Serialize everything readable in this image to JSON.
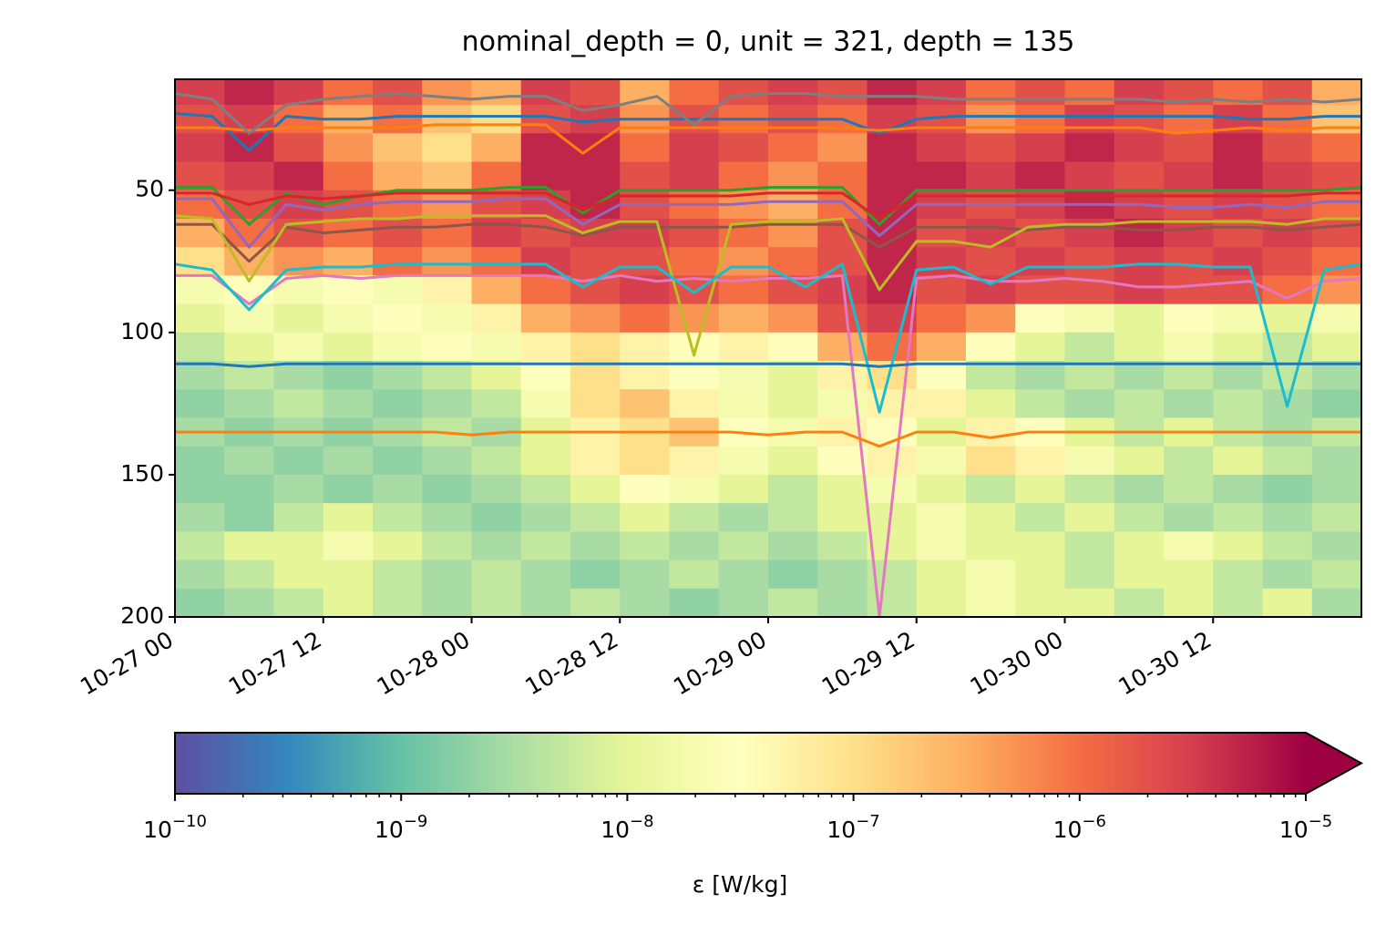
{
  "chart_data": {
    "type": "heatmap",
    "title": "nominal_depth = 0, unit = 321, depth = 135",
    "xlim": [
      "10-27 00",
      "10-31 00"
    ],
    "xticks": [
      "10-27 00",
      "10-27 12",
      "10-28 00",
      "10-28 12",
      "10-29 00",
      "10-29 12",
      "10-30 00",
      "10-30 12"
    ],
    "ylim": [
      200,
      11
    ],
    "yticks": [
      50,
      100,
      150,
      200
    ],
    "heatmap": {
      "x_edges": [
        "10-27 00",
        "10-27 04",
        "10-27 08",
        "10-27 12",
        "10-27 16",
        "10-27 20",
        "10-28 00",
        "10-28 04",
        "10-28 08",
        "10-28 12",
        "10-28 16",
        "10-28 20",
        "10-29 00",
        "10-29 04",
        "10-29 08",
        "10-29 12",
        "10-29 16",
        "10-29 20",
        "10-30 00",
        "10-30 04",
        "10-30 08",
        "10-30 12",
        "10-30 16",
        "10-30 20",
        "10-31 00"
      ],
      "y_edges": [
        10,
        20,
        30,
        40,
        50,
        60,
        70,
        80,
        90,
        100,
        110,
        120,
        130,
        140,
        150,
        160,
        170,
        180,
        190,
        200
      ],
      "values": [
        [
          3e-06,
          5e-06,
          3e-06,
          1e-06,
          2e-06,
          5e-07,
          3e-07,
          3e-06,
          2e-06,
          3e-07,
          1e-06,
          2e-06,
          3e-06,
          2e-06,
          5e-06,
          3e-06,
          1e-06,
          2e-06,
          1e-06,
          3e-06,
          2e-06,
          1e-06,
          2e-06,
          3e-07
        ],
        [
          2e-06,
          3e-06,
          1e-06,
          3e-07,
          1e-06,
          2e-07,
          1e-07,
          2e-06,
          3e-06,
          5e-07,
          2e-06,
          1e-06,
          2e-06,
          1e-06,
          3e-06,
          2e-06,
          5e-07,
          1e-06,
          3e-06,
          2e-06,
          1e-06,
          3e-06,
          1e-06,
          2e-07
        ],
        [
          3e-06,
          5e-06,
          2e-06,
          5e-07,
          2e-07,
          1e-07,
          3e-07,
          5e-06,
          5e-06,
          1e-06,
          3e-06,
          2e-06,
          1e-06,
          5e-07,
          5e-06,
          3e-06,
          2e-06,
          3e-06,
          5e-06,
          3e-06,
          2e-06,
          5e-06,
          2e-06,
          1e-06
        ],
        [
          2e-06,
          3e-06,
          5e-06,
          1e-06,
          3e-07,
          2e-07,
          1e-06,
          5e-06,
          5e-06,
          2e-06,
          3e-06,
          1e-06,
          5e-07,
          1e-06,
          5e-06,
          5e-06,
          3e-06,
          5e-06,
          3e-06,
          2e-06,
          3e-06,
          5e-06,
          3e-06,
          2e-06
        ],
        [
          1e-06,
          2e-06,
          3e-06,
          2e-06,
          1e-06,
          5e-07,
          2e-06,
          3e-06,
          5e-06,
          2e-06,
          1e-06,
          5e-07,
          3e-07,
          1e-06,
          5e-06,
          3e-06,
          2e-06,
          3e-06,
          5e-06,
          3e-06,
          2e-06,
          3e-06,
          2e-06,
          1e-06
        ],
        [
          3e-07,
          1e-06,
          2e-06,
          1e-06,
          2e-06,
          1e-06,
          3e-06,
          2e-06,
          3e-06,
          3e-06,
          2e-06,
          1e-06,
          5e-07,
          2e-06,
          5e-06,
          2e-06,
          3e-06,
          2e-06,
          3e-06,
          5e-06,
          3e-06,
          2e-06,
          3e-06,
          2e-06
        ],
        [
          1e-07,
          3e-07,
          5e-07,
          3e-07,
          1e-06,
          5e-07,
          1e-06,
          3e-06,
          2e-06,
          2e-06,
          1e-06,
          5e-07,
          1e-06,
          2e-06,
          5e-06,
          3e-06,
          2e-06,
          3e-06,
          2e-06,
          3e-06,
          2e-06,
          3e-06,
          2e-06,
          1e-06
        ],
        [
          2e-08,
          3e-08,
          2e-08,
          3e-08,
          2e-08,
          5e-08,
          3e-07,
          1e-06,
          2e-06,
          3e-06,
          2e-06,
          1e-06,
          2e-06,
          3e-06,
          5e-06,
          2e-06,
          3e-06,
          2e-06,
          2e-06,
          3e-06,
          2e-06,
          2e-06,
          1e-06,
          5e-07
        ],
        [
          1e-08,
          2e-08,
          1e-08,
          2e-08,
          3e-08,
          2e-08,
          5e-08,
          3e-07,
          5e-07,
          1e-06,
          5e-07,
          3e-07,
          5e-07,
          2e-06,
          3e-06,
          1e-06,
          5e-07,
          3e-08,
          2e-08,
          1e-08,
          3e-08,
          2e-08,
          1e-08,
          2e-08
        ],
        [
          5e-09,
          1e-08,
          2e-08,
          1e-08,
          2e-08,
          3e-08,
          2e-08,
          5e-08,
          1e-07,
          5e-08,
          3e-08,
          5e-08,
          3e-08,
          3e-07,
          1e-06,
          3e-07,
          3e-08,
          1e-08,
          5e-09,
          1e-08,
          2e-08,
          1e-08,
          5e-09,
          1e-08
        ],
        [
          3e-09,
          5e-09,
          3e-09,
          2e-09,
          3e-09,
          5e-09,
          1e-08,
          3e-08,
          1e-07,
          5e-08,
          3e-08,
          2e-08,
          1e-08,
          5e-08,
          1e-07,
          3e-08,
          5e-09,
          3e-09,
          5e-09,
          3e-09,
          5e-09,
          3e-09,
          5e-09,
          3e-09
        ],
        [
          2e-09,
          3e-09,
          5e-09,
          3e-09,
          2e-09,
          3e-09,
          5e-09,
          2e-08,
          1e-07,
          2e-07,
          5e-08,
          2e-08,
          1e-08,
          2e-08,
          5e-08,
          5e-08,
          1e-08,
          5e-09,
          3e-09,
          5e-09,
          3e-09,
          5e-09,
          3e-09,
          2e-09
        ],
        [
          3e-09,
          2e-09,
          3e-09,
          2e-09,
          3e-09,
          5e-09,
          3e-09,
          1e-08,
          5e-08,
          1e-07,
          2e-07,
          3e-08,
          2e-08,
          5e-08,
          3e-08,
          1e-08,
          5e-08,
          3e-08,
          1e-08,
          5e-09,
          1e-08,
          5e-09,
          3e-09,
          5e-09
        ],
        [
          2e-09,
          3e-09,
          2e-09,
          3e-09,
          2e-09,
          3e-09,
          5e-09,
          1e-08,
          5e-08,
          1e-07,
          5e-08,
          2e-08,
          1e-08,
          3e-08,
          5e-08,
          2e-08,
          1e-07,
          5e-08,
          2e-08,
          1e-08,
          5e-09,
          1e-08,
          5e-09,
          3e-09
        ],
        [
          2e-09,
          2e-09,
          3e-09,
          2e-09,
          3e-09,
          2e-09,
          3e-09,
          5e-09,
          1e-08,
          3e-08,
          2e-08,
          1e-08,
          5e-09,
          1e-08,
          2e-08,
          1e-08,
          5e-09,
          1e-08,
          5e-09,
          3e-09,
          5e-09,
          3e-09,
          2e-09,
          3e-09
        ],
        [
          3e-09,
          2e-09,
          5e-09,
          1e-08,
          5e-09,
          3e-09,
          2e-09,
          3e-09,
          5e-09,
          1e-08,
          5e-09,
          3e-09,
          5e-09,
          1e-08,
          1e-08,
          2e-08,
          1e-08,
          5e-09,
          1e-08,
          5e-09,
          3e-09,
          5e-09,
          3e-09,
          5e-09
        ],
        [
          5e-09,
          1e-08,
          1e-08,
          2e-08,
          1e-08,
          5e-09,
          3e-09,
          5e-09,
          3e-09,
          5e-09,
          3e-09,
          5e-09,
          3e-09,
          5e-09,
          1e-08,
          2e-08,
          1e-08,
          1e-08,
          5e-09,
          1e-08,
          2e-08,
          1e-08,
          5e-09,
          3e-09
        ],
        [
          3e-09,
          5e-09,
          1e-08,
          1e-08,
          5e-09,
          3e-09,
          5e-09,
          3e-09,
          2e-09,
          3e-09,
          5e-09,
          3e-09,
          2e-09,
          3e-09,
          5e-09,
          1e-08,
          2e-08,
          1e-08,
          5e-09,
          1e-08,
          1e-08,
          5e-09,
          3e-09,
          5e-09
        ],
        [
          2e-09,
          3e-09,
          5e-09,
          1e-08,
          5e-09,
          3e-09,
          5e-09,
          3e-09,
          5e-09,
          3e-09,
          2e-09,
          3e-09,
          5e-09,
          3e-09,
          5e-09,
          1e-08,
          2e-08,
          1e-08,
          1e-08,
          5e-09,
          1e-08,
          5e-09,
          1e-08,
          3e-09
        ]
      ]
    },
    "x": [
      "10-27 00",
      "10-27 03",
      "10-27 06",
      "10-27 09",
      "10-27 12",
      "10-27 15",
      "10-27 18",
      "10-27 21",
      "10-28 00",
      "10-28 03",
      "10-28 06",
      "10-28 09",
      "10-28 12",
      "10-28 15",
      "10-28 18",
      "10-28 21",
      "10-29 00",
      "10-29 03",
      "10-29 06",
      "10-29 09",
      "10-29 12",
      "10-29 15",
      "10-29 18",
      "10-29 21",
      "10-30 00",
      "10-30 03",
      "10-30 06",
      "10-30 09",
      "10-30 12",
      "10-30 15",
      "10-30 18",
      "10-30 21",
      "10-31 00"
    ],
    "series": [
      {
        "color": "#1f77b4",
        "values": [
          23,
          24,
          36,
          24,
          25,
          25,
          24,
          24,
          24,
          24,
          24,
          26,
          25,
          25,
          25,
          25,
          25,
          25,
          25,
          30,
          25,
          24,
          24,
          24,
          24,
          24,
          24,
          24,
          24,
          25,
          25,
          24,
          24
        ]
      },
      {
        "color": "#ff7f0e",
        "values": [
          28,
          28,
          29,
          28,
          28,
          28,
          28,
          27,
          27,
          27,
          27,
          37,
          28,
          28,
          28,
          28,
          28,
          28,
          28,
          29,
          28,
          28,
          28,
          28,
          28,
          28,
          28,
          30,
          29,
          28,
          29,
          28,
          28
        ]
      },
      {
        "color": "#2ca02c",
        "values": [
          49,
          49,
          62,
          51,
          55,
          52,
          50,
          50,
          50,
          49,
          49,
          58,
          50,
          50,
          50,
          50,
          49,
          49,
          49,
          62,
          50,
          50,
          50,
          50,
          50,
          50,
          50,
          50,
          50,
          50,
          50,
          50,
          49
        ]
      },
      {
        "color": "#d62728",
        "values": [
          51,
          51,
          55,
          52,
          53,
          52,
          51,
          51,
          51,
          51,
          51,
          57,
          52,
          52,
          52,
          52,
          51,
          51,
          51,
          60,
          52,
          52,
          52,
          52,
          52,
          52,
          52,
          52,
          52,
          52,
          52,
          51,
          51
        ]
      },
      {
        "color": "#9467bd",
        "values": [
          53,
          53,
          70,
          55,
          57,
          55,
          54,
          54,
          54,
          53,
          53,
          62,
          55,
          55,
          55,
          55,
          54,
          54,
          54,
          66,
          55,
          55,
          55,
          55,
          55,
          55,
          55,
          56,
          56,
          55,
          56,
          54,
          54
        ]
      },
      {
        "color": "#8c564b",
        "values": [
          62,
          62,
          75,
          63,
          65,
          64,
          63,
          63,
          62,
          62,
          63,
          66,
          63,
          63,
          63,
          63,
          62,
          62,
          62,
          70,
          63,
          63,
          63,
          64,
          63,
          63,
          64,
          64,
          63,
          63,
          64,
          63,
          62
        ]
      },
      {
        "color": "#e377c2",
        "values": [
          80,
          80,
          90,
          81,
          80,
          81,
          80,
          80,
          80,
          80,
          80,
          82,
          80,
          82,
          81,
          82,
          81,
          81,
          80,
          200,
          81,
          80,
          82,
          82,
          81,
          82,
          84,
          84,
          83,
          82,
          88,
          82,
          81
        ]
      },
      {
        "color": "#7f7f7f",
        "values": [
          16,
          18,
          30,
          20,
          18,
          17,
          16,
          17,
          18,
          17,
          17,
          22,
          20,
          17,
          27,
          17,
          16,
          16,
          17,
          17,
          17,
          18,
          18,
          18,
          18,
          18,
          18,
          19,
          18,
          19,
          18,
          19,
          18
        ]
      },
      {
        "color": "#bcbd22",
        "values": [
          59,
          60,
          82,
          62,
          61,
          60,
          60,
          59,
          59,
          59,
          59,
          65,
          61,
          61,
          108,
          62,
          61,
          61,
          60,
          85,
          68,
          68,
          70,
          63,
          62,
          62,
          61,
          61,
          61,
          61,
          62,
          60,
          60
        ]
      },
      {
        "color": "#17becf",
        "values": [
          76,
          78,
          92,
          78,
          77,
          77,
          76,
          76,
          76,
          76,
          76,
          84,
          77,
          77,
          86,
          77,
          77,
          84,
          76,
          128,
          78,
          77,
          83,
          77,
          77,
          77,
          76,
          76,
          77,
          77,
          126,
          78,
          76
        ]
      },
      {
        "color": "#1f77b4",
        "values": [
          111,
          111,
          112,
          111,
          111,
          111,
          111,
          111,
          111,
          111,
          111,
          111,
          111,
          111,
          111,
          111,
          111,
          111,
          111,
          112,
          111,
          111,
          111,
          111,
          111,
          111,
          111,
          111,
          111,
          111,
          111,
          111,
          111
        ]
      },
      {
        "color": "#ff7f0e",
        "values": [
          135,
          135,
          135,
          135,
          135,
          135,
          135,
          135,
          136,
          135,
          135,
          135,
          135,
          135,
          135,
          135,
          136,
          135,
          135,
          140,
          135,
          135,
          137,
          135,
          135,
          135,
          135,
          135,
          135,
          135,
          135,
          135,
          135
        ]
      }
    ],
    "colorbar": {
      "label": "ε [W/kg]",
      "log": true,
      "extend": "max",
      "lim": [
        1e-10,
        1e-05
      ],
      "ticks": [
        {
          "value": 1e-10,
          "label": "10",
          "exponent": "−10"
        },
        {
          "value": 1e-09,
          "label": "10",
          "exponent": "−9"
        },
        {
          "value": 1e-08,
          "label": "10",
          "exponent": "−8"
        },
        {
          "value": 1e-07,
          "label": "10",
          "exponent": "−7"
        },
        {
          "value": 1e-06,
          "label": "10",
          "exponent": "−6"
        },
        {
          "value": 1e-05,
          "label": "10",
          "exponent": "−5"
        }
      ],
      "minor_ticks": [
        2e-10,
        3e-10,
        4e-10,
        5e-10,
        6e-10,
        7e-10,
        8e-10,
        9e-10,
        2e-09,
        3e-09,
        4e-09,
        5e-09,
        6e-09,
        7e-09,
        8e-09,
        9e-09,
        2e-08,
        3e-08,
        4e-08,
        5e-08,
        6e-08,
        7e-08,
        8e-08,
        9e-08,
        2e-07,
        3e-07,
        4e-07,
        5e-07,
        6e-07,
        7e-07,
        8e-07,
        9e-07,
        2e-06,
        3e-06,
        4e-06,
        5e-06,
        6e-06,
        7e-06,
        8e-06,
        9e-06
      ],
      "colors": [
        "#5e4fa2",
        "#3288bd",
        "#66c2a5",
        "#abdda4",
        "#e6f598",
        "#ffffbf",
        "#fee08b",
        "#fdae61",
        "#f46d43",
        "#d53e4f",
        "#9e0142"
      ]
    }
  }
}
